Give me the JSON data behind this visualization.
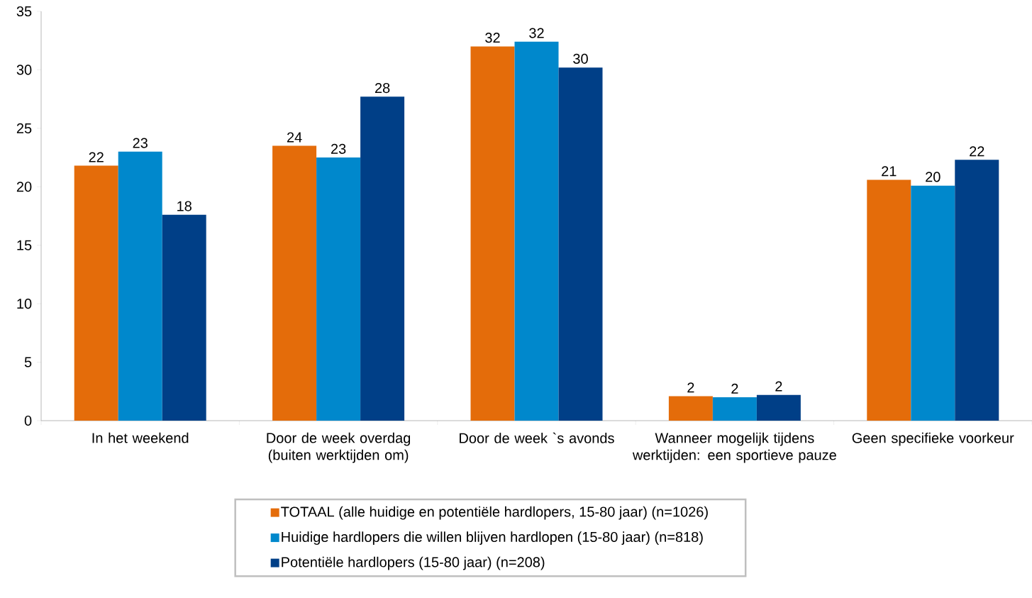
{
  "chart_data": {
    "type": "bar",
    "categories": [
      "In het weekend",
      "Door de week overdag (buiten werktijden om)",
      "Door de week `s avonds",
      "Wanneer mogelijk tijdens werktijden: een sportieve pauze",
      "Geen specifieke voorkeur"
    ],
    "series": [
      {
        "name": "TOTAAL (alle huidige en potentiële hardlopers, 15-80 jaar) (n=1026)",
        "color": "#e46c0a",
        "values": [
          21.8,
          23.5,
          32.0,
          2.1,
          20.6
        ],
        "value_labels": [
          "22",
          "24",
          "32",
          "2",
          "21"
        ]
      },
      {
        "name": "Huidige hardlopers die willen blijven hardlopen (15-80 jaar) (n=818)",
        "color": "#0088cc",
        "values": [
          23.0,
          22.5,
          32.4,
          2.0,
          20.1
        ],
        "value_labels": [
          "23",
          "23",
          "32",
          "2",
          "20"
        ]
      },
      {
        "name": "Potentiële hardlopers (15-80 jaar) (n=208)",
        "color": "#003f87",
        "values": [
          17.6,
          27.7,
          30.2,
          2.2,
          22.3
        ],
        "value_labels": [
          "18",
          "28",
          "30",
          "2",
          "22"
        ]
      }
    ],
    "ylim": [
      0,
      35
    ],
    "yticks": [
      0,
      5,
      10,
      15,
      20,
      25,
      30,
      35
    ],
    "grid": false,
    "legend": "bottom"
  }
}
